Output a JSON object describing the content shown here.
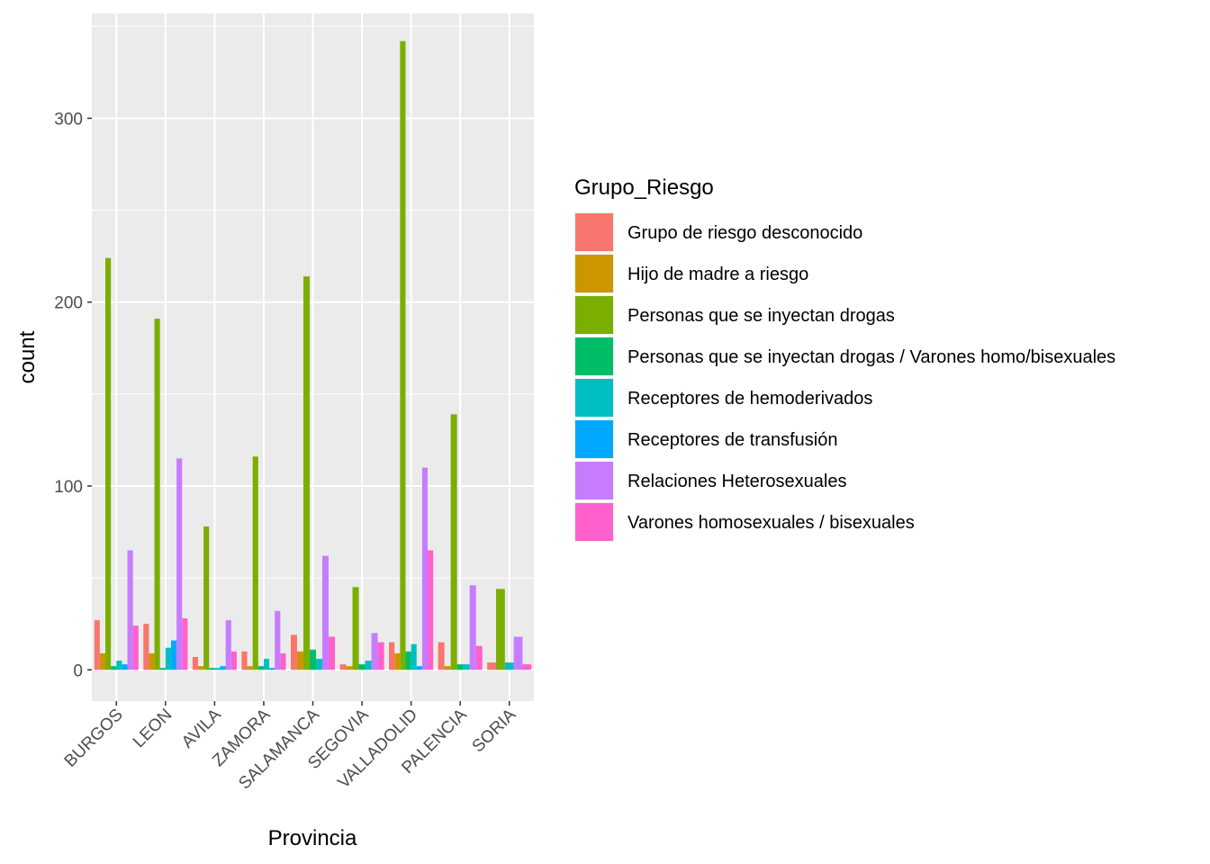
{
  "chart_data": {
    "type": "bar",
    "xlabel": "Provincia",
    "ylabel": "count",
    "ylim": [
      -17,
      357
    ],
    "yticks": [
      0,
      100,
      200,
      300
    ],
    "grid": true,
    "legend_position": "right",
    "legend_title": "Grupo_Riesgo",
    "categories": [
      "BURGOS",
      "LEON",
      "AVILA",
      "ZAMORA",
      "SALAMANCA",
      "SEGOVIA",
      "VALLADOLID",
      "PALENCIA",
      "SORIA"
    ],
    "series": [
      {
        "name": "Grupo de riesgo desconocido",
        "color": "#F8766D",
        "values": [
          27,
          25,
          7,
          10,
          19,
          3,
          15,
          15,
          4
        ]
      },
      {
        "name": "Hijo de madre a riesgo",
        "color": "#CD9600",
        "values": [
          9,
          9,
          2,
          2,
          10,
          2,
          9,
          2,
          null
        ]
      },
      {
        "name": "Personas que se inyectan drogas",
        "color": "#7CAE00",
        "values": [
          224,
          191,
          78,
          116,
          214,
          45,
          342,
          139,
          44
        ]
      },
      {
        "name": "Personas que se inyectan drogas / Varones homo/bisexuales",
        "color": "#00BE67",
        "values": [
          2,
          1,
          1,
          2,
          11,
          3,
          10,
          3,
          null
        ]
      },
      {
        "name": "Receptores de hemoderivados",
        "color": "#00BFC4",
        "values": [
          5,
          12,
          1,
          6,
          6,
          5,
          14,
          3,
          4
        ]
      },
      {
        "name": "Receptores de transfusión",
        "color": "#00A9FF",
        "values": [
          3,
          16,
          2,
          1,
          null,
          null,
          2,
          null,
          null
        ]
      },
      {
        "name": "Relaciones Heterosexuales",
        "color": "#C77CFF",
        "values": [
          65,
          115,
          27,
          32,
          62,
          20,
          110,
          46,
          18
        ]
      },
      {
        "name": "Varones homosexuales / bisexuales",
        "color": "#FF61CC",
        "values": [
          24,
          28,
          10,
          9,
          18,
          15,
          65,
          13,
          3
        ]
      }
    ]
  }
}
